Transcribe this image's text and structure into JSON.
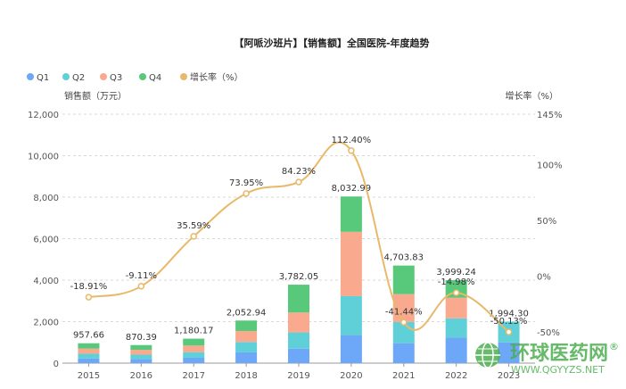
{
  "chart_data": {
    "type": "bar",
    "stacked": true,
    "title": "【阿哌沙班片】【销售额】全国医院-年度趋势",
    "categories": [
      "2015",
      "2016",
      "2017",
      "2018",
      "2019",
      "2020",
      "2021",
      "2022",
      "2023"
    ],
    "series": [
      {
        "name": "Q1",
        "color": "#6da7f7",
        "values": [
          220,
          200,
          260,
          520,
          700,
          1350,
          960,
          1230,
          1000
        ]
      },
      {
        "name": "Q2",
        "color": "#5fd0d8",
        "values": [
          230,
          210,
          270,
          500,
          780,
          1880,
          1020,
          930,
          994.3
        ]
      },
      {
        "name": "Q3",
        "color": "#f9a98e",
        "values": [
          250,
          230,
          320,
          530,
          960,
          3100,
          1350,
          1000,
          0
        ]
      },
      {
        "name": "Q4",
        "color": "#58c97a",
        "values": [
          257.66,
          230.39,
          330.17,
          502.94,
          1342.05,
          1702.99,
          1373.83,
          839.24,
          0
        ]
      }
    ],
    "totals": [
      957.66,
      870.39,
      1180.17,
      2052.94,
      3782.05,
      8032.99,
      4703.83,
      3999.24,
      1994.3
    ],
    "total_labels": [
      "957.66",
      "870.39",
      "1,180.17",
      "2,052.94",
      "3,782.05",
      "8,032.99",
      "4,703.83",
      "3,999.24",
      "1,994.30"
    ],
    "growth": {
      "name": "增长率（%）",
      "color": "#e8b96a",
      "values": [
        -18.91,
        -9.11,
        35.59,
        73.95,
        84.23,
        112.4,
        -41.44,
        -14.98,
        -50.13
      ],
      "labels": [
        "-18.91%",
        "-9.11%",
        "35.59%",
        "73.95%",
        "84.23%",
        "112.40%",
        "-41.44%",
        "-14.98%",
        "-50.13%"
      ]
    },
    "ylabel": "销售额（万元）",
    "ylabel_right": "增长率（%）",
    "ylim": [
      0,
      12000
    ],
    "yticks": [
      0,
      2000,
      4000,
      6000,
      8000,
      10000,
      12000
    ],
    "ytick_labels": [
      "0",
      "2,000",
      "4,000",
      "6,000",
      "8,000",
      "10,000",
      "12,000"
    ],
    "ylim_right": [
      -78,
      145
    ],
    "yticks_right": [
      -50,
      0,
      50,
      100,
      145
    ],
    "ytick_right_labels": [
      "-50%",
      "0%",
      "50%",
      "100%",
      "145%"
    ],
    "legend": [
      "Q1",
      "Q2",
      "Q3",
      "Q4",
      "增长率（%）"
    ],
    "grid": true
  },
  "watermark": {
    "text": "环球医药网",
    "url": "WWW.QGYYZS.NET",
    "registered": "®"
  }
}
